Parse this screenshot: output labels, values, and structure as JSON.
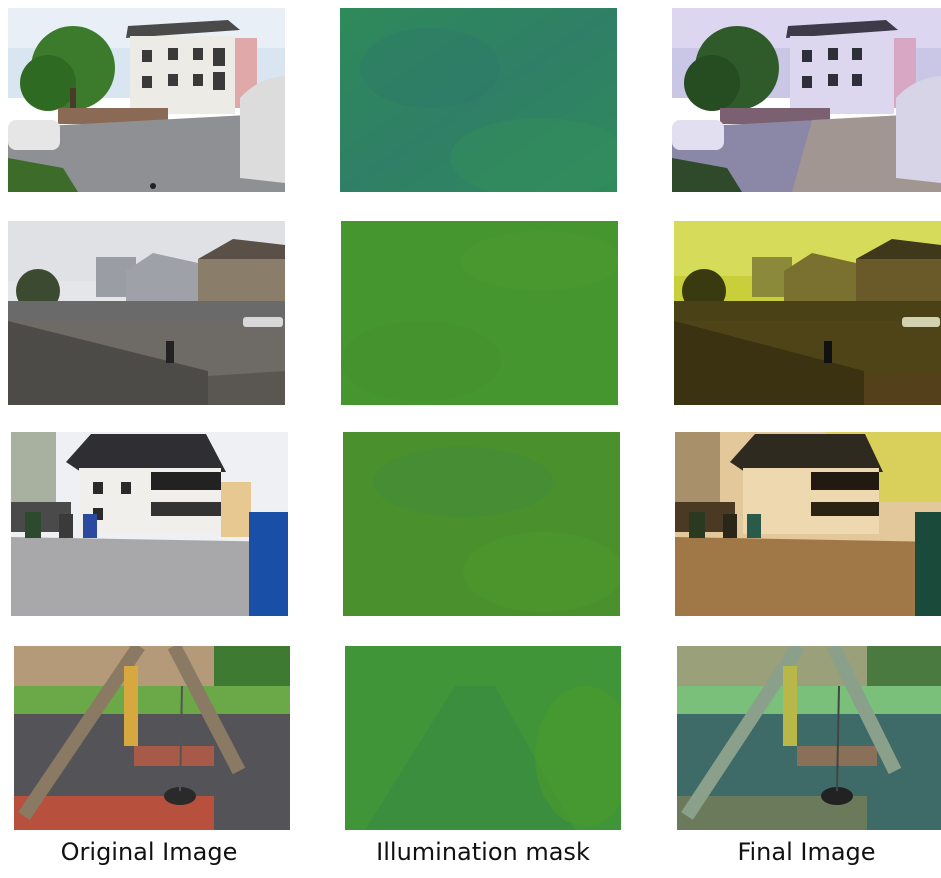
{
  "captions": {
    "original": "Original Image",
    "mask": "Illumination mask",
    "final": "Final Image"
  },
  "colors": {
    "background": "#ffffff",
    "caption_text": "#111111",
    "mask_row1": "#2f8a5c",
    "mask_row2": "#46962f",
    "mask_row3": "#4a912e",
    "mask_row4": "#3f9538",
    "final_row1_tint": "#b7a8d6",
    "final_row2_tint": "#c8d13a",
    "final_row3_tint": "#c89a4a",
    "final_row4_tint": "#6fc4b5"
  }
}
